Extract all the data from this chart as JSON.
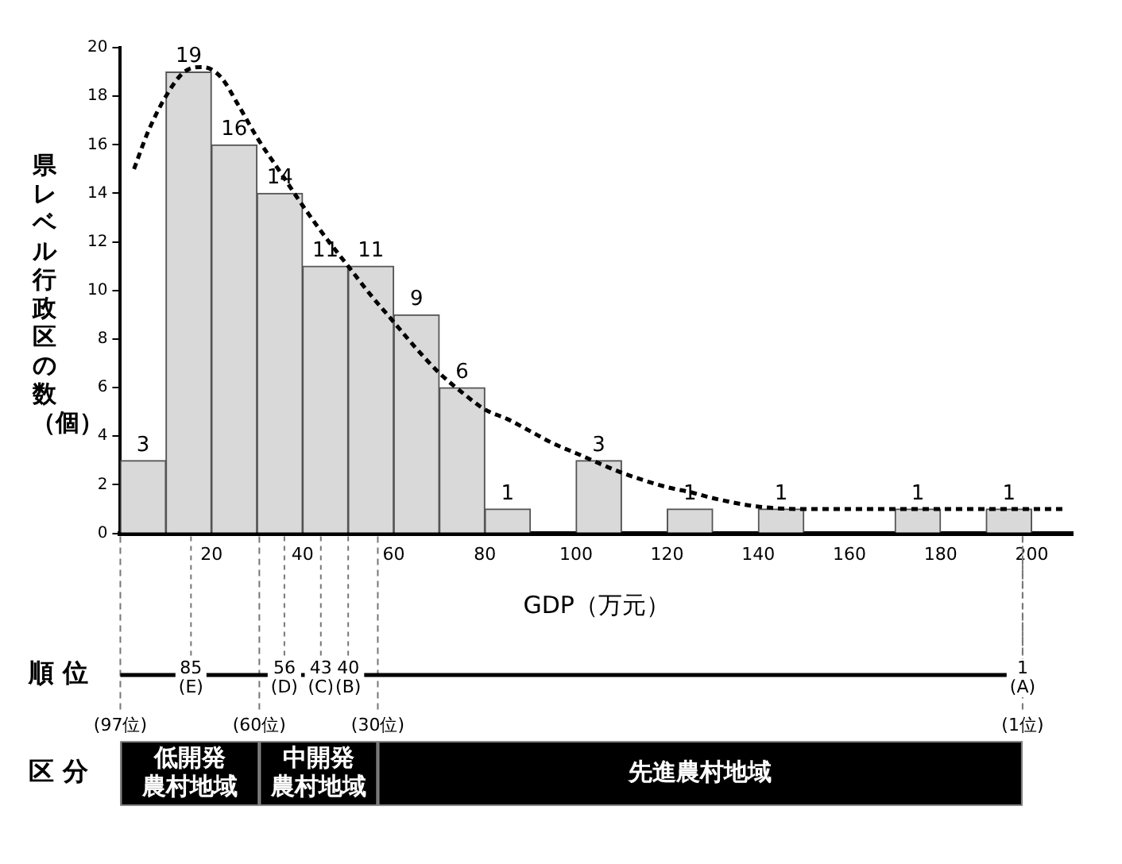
{
  "chart_data": {
    "type": "histogram",
    "xlabel": "GDP（万元）",
    "ylabel": "県レベル行政区の数（個）",
    "xlim": [
      0,
      209
    ],
    "xticks": [
      20,
      40,
      60,
      80,
      100,
      120,
      140,
      160,
      180,
      200
    ],
    "ylim": [
      0,
      20
    ],
    "yticks": [
      0,
      2,
      4,
      6,
      8,
      10,
      12,
      14,
      16,
      18,
      20
    ],
    "grid": false,
    "legend": false,
    "series": [
      {
        "color": "#d9d9d9",
        "bins": [
          0,
          10,
          20,
          30,
          40,
          50,
          60,
          70,
          80,
          90,
          100,
          110,
          120,
          130,
          140,
          150,
          160,
          170,
          180,
          190,
          200
        ],
        "values": [
          3,
          19,
          16,
          14,
          11,
          11,
          9,
          6,
          1,
          0,
          3,
          0,
          1,
          0,
          1,
          0,
          0,
          1,
          0,
          1
        ],
        "value_labels": [
          "3",
          "19",
          "16",
          "14",
          "11",
          "11",
          "9",
          "6",
          "1",
          null,
          "3",
          null,
          "1",
          null,
          "1",
          null,
          null,
          "1",
          null,
          "1"
        ]
      },
      {
        "type": "line",
        "color": "#000000",
        "line_style": "dashed",
        "marker": "none",
        "x": [
          3,
          6,
          10,
          14,
          18,
          22,
          26,
          30,
          35,
          40,
          45,
          50,
          55,
          60,
          65,
          70,
          75,
          80,
          85,
          90,
          95,
          100,
          110,
          120,
          125,
          130,
          140,
          150,
          170,
          190,
          207
        ],
        "values": [
          15,
          16.5,
          18,
          19,
          19.2,
          18.8,
          17.6,
          16.3,
          14.9,
          13.5,
          12.2,
          11,
          9.8,
          8.7,
          7.6,
          6.6,
          5.8,
          5.1,
          4.7,
          4.2,
          3.7,
          3.3,
          2.5,
          1.9,
          1.7,
          1.45,
          1.1,
          1,
          1,
          1,
          1
        ]
      }
    ],
    "ref_lines": [
      {
        "axis": "x",
        "value": 0,
        "label": "(97位)",
        "line_style": "dashed"
      },
      {
        "axis": "x",
        "value": 30.5,
        "label": "(60位)",
        "line_style": "dashed"
      },
      {
        "axis": "x",
        "value": 56.5,
        "label": "(30位)",
        "line_style": "dashed"
      },
      {
        "axis": "x",
        "value": 198,
        "label": "(1位)",
        "line_style": "dashed"
      },
      {
        "axis": "x",
        "value": 15.5,
        "label": "85\n(E)",
        "line_style": "dotted"
      },
      {
        "axis": "x",
        "value": 36,
        "label": "56\n(D)",
        "line_style": "dotted"
      },
      {
        "axis": "x",
        "value": 44,
        "label": "43\n(C)",
        "line_style": "dotted"
      },
      {
        "axis": "x",
        "value": 50,
        "label": "40\n(B)",
        "line_style": "dotted"
      },
      {
        "axis": "x",
        "value": 198,
        "label": "1\n(A)",
        "line_style": "dotted"
      }
    ],
    "annotations": [
      "順位",
      "区分",
      "低開発農村地域",
      "中開発農村地域",
      "先進農村地域"
    ]
  }
}
